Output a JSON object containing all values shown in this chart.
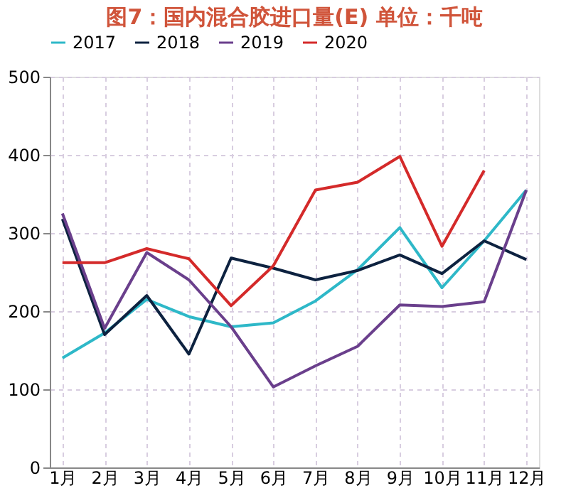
{
  "chart_data": {
    "type": "line",
    "title": "图7：国内混合胶进口量(E)  单位：千吨",
    "categories": [
      "1月",
      "2月",
      "3月",
      "4月",
      "5月",
      "6月",
      "7月",
      "8月",
      "9月",
      "10月",
      "11月",
      "12月"
    ],
    "series": [
      {
        "name": "2017",
        "color": "#2eb8c8",
        "values": [
          140,
          172,
          215,
          193,
          180,
          185,
          213,
          253,
          307,
          230,
          290,
          355
        ]
      },
      {
        "name": "2018",
        "color": "#0d2240",
        "values": [
          318,
          170,
          220,
          145,
          268,
          255,
          240,
          252,
          272,
          248,
          290,
          266
        ]
      },
      {
        "name": "2019",
        "color": "#6a3f8c",
        "values": [
          325,
          178,
          275,
          240,
          180,
          103,
          130,
          155,
          208,
          206,
          212,
          355
        ]
      },
      {
        "name": "2020",
        "color": "#d42a2a",
        "values": [
          262,
          262,
          280,
          267,
          207,
          258,
          355,
          365,
          398,
          283,
          380,
          null
        ]
      }
    ],
    "ylim": [
      0,
      500
    ],
    "yticks": [
      0,
      100,
      200,
      300,
      400,
      500
    ],
    "grid": true,
    "legend": "top",
    "marker": "none",
    "line_style": "solid"
  }
}
